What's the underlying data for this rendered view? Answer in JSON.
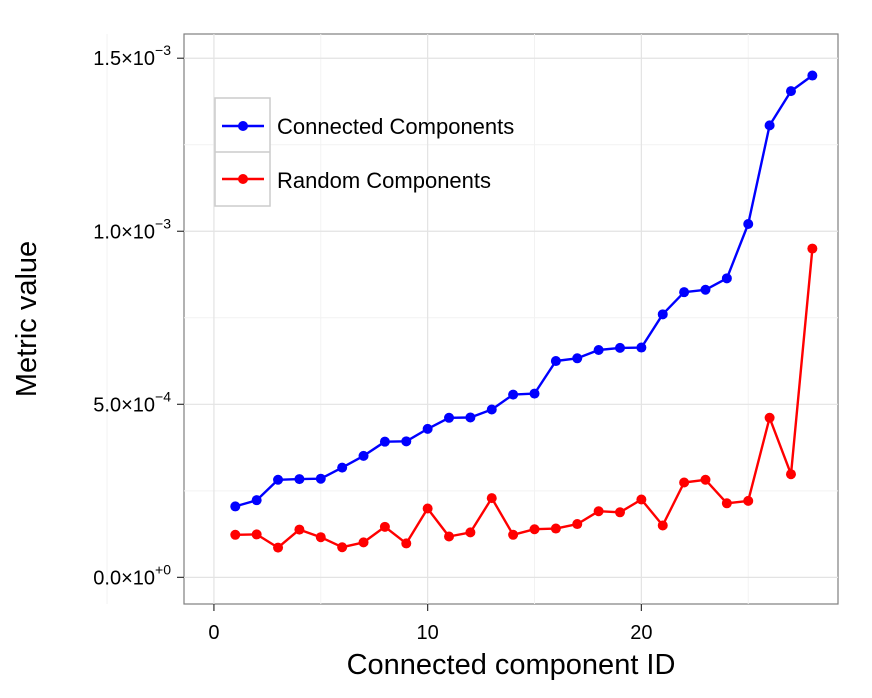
{
  "chart_data": {
    "type": "line",
    "xlabel": "Connected component ID",
    "ylabel": "Metric value",
    "xlim": [
      -1.4,
      29.2
    ],
    "ylim": [
      -7.7e-05,
      0.00157
    ],
    "x_ticks": [
      0,
      10,
      20
    ],
    "x_tick_labels": [
      "0",
      "10",
      "20"
    ],
    "y_ticks": [
      0,
      0.0005,
      0.001,
      0.0015
    ],
    "y_tick_labels": [
      {
        "mantissa": "0.0",
        "times": "×",
        "base": "10",
        "exp": "+0"
      },
      {
        "mantissa": "5.0",
        "times": "×",
        "base": "10",
        "exp": "−4"
      },
      {
        "mantissa": "1.0",
        "times": "×",
        "base": "10",
        "exp": "−3"
      },
      {
        "mantissa": "1.5",
        "times": "×",
        "base": "10",
        "exp": "−3"
      }
    ],
    "grid": true,
    "legend": "top-left",
    "x": [
      1,
      2,
      3,
      4,
      5,
      6,
      7,
      8,
      9,
      10,
      11,
      12,
      13,
      14,
      15,
      16,
      17,
      18,
      19,
      20,
      21,
      22,
      23,
      24,
      25,
      26,
      27,
      28
    ],
    "series": [
      {
        "name": "Connected Components",
        "color": "#0000ff",
        "values": [
          0.000205,
          0.000223,
          0.000282,
          0.000284,
          0.000285,
          0.000317,
          0.000351,
          0.000392,
          0.000393,
          0.000429,
          0.000461,
          0.000462,
          0.000485,
          0.000528,
          0.000531,
          0.000625,
          0.000633,
          0.000657,
          0.000663,
          0.000664,
          0.00076,
          0.000824,
          0.000831,
          0.000864,
          0.001021,
          0.001306,
          0.001405,
          0.00145
        ]
      },
      {
        "name": "Random Components",
        "color": "#ff0000",
        "values": [
          0.000123,
          0.000124,
          8.6e-05,
          0.000138,
          0.000116,
          8.7e-05,
          0.000101,
          0.000146,
          9.8e-05,
          0.000199,
          0.000118,
          0.00013,
          0.000229,
          0.000123,
          0.000139,
          0.000141,
          0.000154,
          0.000191,
          0.000188,
          0.000225,
          0.00015,
          0.000274,
          0.000282,
          0.000214,
          0.000221,
          0.000461,
          0.000298,
          0.00095
        ]
      }
    ]
  }
}
